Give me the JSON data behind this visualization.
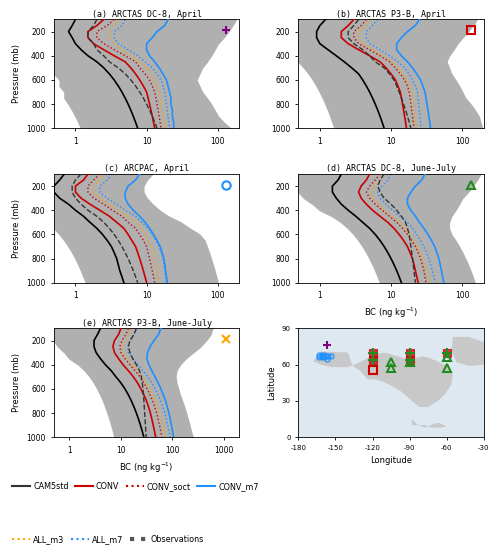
{
  "panels": [
    {
      "label": "(a) ARCTAS DC-8, April",
      "marker": "+",
      "marker_color": "#800080",
      "xlim": [
        0.5,
        200
      ],
      "xticks": [
        1,
        10,
        100
      ]
    },
    {
      "label": "(b) ARCTAS P3-B, April",
      "marker": "s",
      "marker_color": "#CC0000",
      "xlim": [
        0.5,
        200
      ],
      "xticks": [
        1,
        10,
        100
      ]
    },
    {
      "label": "(c) ARCPAC, April",
      "marker": "o",
      "marker_color": "#1E90FF",
      "xlim": [
        0.5,
        200
      ],
      "xticks": [
        1,
        10,
        100
      ]
    },
    {
      "label": "(d) ARCTAS DC-8, June-July",
      "marker": "^",
      "marker_color": "#228B22",
      "xlim": [
        0.5,
        200
      ],
      "xticks": [
        1,
        10,
        100
      ]
    },
    {
      "label": "(e) ARCTAS P3-B, June-July",
      "marker": "x",
      "marker_color": "#FFA500",
      "xlim": [
        0.5,
        2000
      ],
      "xticks": [
        1,
        10,
        100,
        1000
      ]
    }
  ],
  "pressure_levels": [
    100,
    150,
    200,
    250,
    300,
    350,
    400,
    450,
    500,
    550,
    600,
    650,
    700,
    750,
    800,
    850,
    900,
    950,
    1000
  ],
  "panel_a": {
    "obs_x_low": [
      0.3,
      0.3,
      0.3,
      0.3,
      0.3,
      0.3,
      0.3,
      0.4,
      0.5,
      0.5,
      0.6,
      0.6,
      0.7,
      0.7,
      0.8,
      0.9,
      1.0,
      1.1,
      1.2
    ],
    "obs_x_high": [
      180,
      160,
      140,
      120,
      100,
      90,
      80,
      70,
      60,
      55,
      50,
      55,
      60,
      70,
      80,
      90,
      100,
      120,
      150
    ],
    "obs_x_med": [
      2.0,
      1.8,
      1.5,
      1.5,
      1.8,
      2.0,
      2.5,
      3.0,
      4.0,
      5.0,
      6.0,
      7.0,
      8.0,
      9.0,
      10.0,
      11.0,
      12.0,
      13.0,
      14.0
    ],
    "CAM5std": [
      1.0,
      0.9,
      0.8,
      0.9,
      1.0,
      1.2,
      1.5,
      2.0,
      2.5,
      3.0,
      3.5,
      4.0,
      4.5,
      5.0,
      5.5,
      6.0,
      6.5,
      7.0,
      7.5
    ],
    "CONV": [
      2.5,
      2.0,
      1.5,
      1.5,
      1.8,
      2.5,
      3.5,
      5.0,
      6.0,
      7.0,
      8.0,
      9.0,
      10.0,
      10.5,
      11.0,
      11.5,
      12.0,
      12.5,
      13.0
    ],
    "CONV_soct": [
      3.5,
      2.8,
      2.0,
      2.0,
      2.5,
      3.5,
      5.0,
      7.0,
      8.0,
      9.5,
      11.0,
      12.0,
      13.0,
      13.5,
      14.0,
      14.5,
      15.0,
      15.5,
      16.0
    ],
    "CONV_m7": [
      20,
      18,
      14,
      12,
      10,
      10,
      11,
      13,
      15,
      17,
      19,
      20,
      21,
      22,
      22,
      23,
      23,
      24,
      24
    ],
    "ALL_m3": [
      4.0,
      3.5,
      3.0,
      3.0,
      3.5,
      4.5,
      6.0,
      8.0,
      10.0,
      11.5,
      13.0,
      14.0,
      15.0,
      15.5,
      16.0,
      16.5,
      17.0,
      17.5,
      18.0
    ],
    "ALL_m7": [
      5.0,
      4.5,
      3.5,
      3.5,
      4.0,
      5.5,
      7.5,
      9.5,
      12.0,
      14.0,
      16.0,
      17.0,
      18.0,
      18.5,
      19.0,
      19.5,
      20.0,
      20.5,
      21.0
    ]
  },
  "panel_b": {
    "obs_x_low": [
      0.3,
      0.3,
      0.3,
      0.3,
      0.3,
      0.4,
      0.5,
      0.5,
      0.6,
      0.7,
      0.8,
      0.9,
      1.0,
      1.1,
      1.2,
      1.3,
      1.4,
      1.5,
      1.6
    ],
    "obs_x_high": [
      160,
      140,
      120,
      100,
      85,
      75,
      65,
      60,
      65,
      70,
      80,
      90,
      100,
      110,
      130,
      150,
      170,
      180,
      190
    ],
    "obs_x_med": [
      3.5,
      3.0,
      2.5,
      2.5,
      3.0,
      4.0,
      5.0,
      6.0,
      8.0,
      9.5,
      11.0,
      12.0,
      13.0,
      14.0,
      15.0,
      16.0,
      17.0,
      18.0,
      19.0
    ],
    "CAM5std": [
      1.2,
      1.0,
      0.9,
      0.9,
      1.0,
      1.3,
      1.7,
      2.2,
      2.8,
      3.5,
      4.0,
      4.5,
      5.0,
      5.5,
      6.0,
      6.5,
      7.0,
      7.5,
      8.0
    ],
    "CONV": [
      3.0,
      2.5,
      2.0,
      2.0,
      2.5,
      3.5,
      5.0,
      7.0,
      8.5,
      10.0,
      11.5,
      12.5,
      13.5,
      14.0,
      14.5,
      15.0,
      15.5,
      16.0,
      16.5
    ],
    "CONV_soct": [
      4.5,
      3.8,
      3.0,
      3.0,
      3.5,
      5.0,
      7.0,
      9.5,
      11.5,
      13.5,
      15.5,
      17.0,
      18.0,
      18.5,
      19.0,
      19.5,
      20.0,
      20.5,
      21.0
    ],
    "CONV_m7": [
      25,
      22,
      17,
      14,
      12,
      12,
      14,
      17,
      20,
      23,
      26,
      28,
      30,
      31,
      32,
      33,
      34,
      35,
      36
    ],
    "ALL_m3": [
      5.0,
      4.5,
      3.5,
      3.5,
      4.0,
      5.5,
      7.5,
      10.0,
      12.5,
      14.5,
      16.5,
      18.0,
      19.5,
      20.0,
      20.5,
      21.0,
      21.5,
      22.0,
      22.5
    ],
    "ALL_m7": [
      6.5,
      5.5,
      4.5,
      4.5,
      5.0,
      7.0,
      9.5,
      12.5,
      15.5,
      18.0,
      20.0,
      22.0,
      23.5,
      24.0,
      24.5,
      25.0,
      25.5,
      26.0,
      26.5
    ]
  },
  "panel_c": {
    "obs_x_low": [
      0.3,
      0.3,
      0.3,
      0.3,
      0.3,
      0.3,
      0.4,
      0.4,
      0.5,
      0.5,
      0.6,
      0.7,
      0.8,
      0.9,
      1.0,
      1.1,
      1.2,
      1.3,
      1.4
    ],
    "obs_x_high": [
      12,
      10,
      9,
      9,
      10,
      12,
      15,
      20,
      30,
      40,
      55,
      65,
      70,
      75,
      80,
      85,
      90,
      95,
      100
    ],
    "obs_x_med": [
      1.2,
      1.0,
      0.9,
      0.9,
      1.0,
      1.2,
      1.5,
      2.0,
      2.5,
      3.0,
      3.5,
      4.0,
      4.5,
      5.0,
      5.5,
      6.0,
      6.5,
      7.0,
      7.5
    ],
    "CAM5std": [
      0.7,
      0.6,
      0.5,
      0.5,
      0.6,
      0.8,
      1.0,
      1.3,
      1.6,
      2.0,
      2.4,
      2.8,
      3.2,
      3.5,
      3.8,
      4.0,
      4.2,
      4.5,
      4.8
    ],
    "CONV": [
      1.5,
      1.3,
      1.0,
      1.0,
      1.2,
      1.6,
      2.2,
      3.0,
      3.8,
      4.8,
      5.5,
      6.2,
      7.0,
      7.5,
      8.0,
      8.5,
      9.0,
      9.5,
      10.0
    ],
    "CONV_soct": [
      2.2,
      1.8,
      1.5,
      1.5,
      1.8,
      2.5,
      3.3,
      4.5,
      5.5,
      7.0,
      8.0,
      9.0,
      10.0,
      10.5,
      11.0,
      11.5,
      12.0,
      12.5,
      13.0
    ],
    "CONV_m7": [
      8.0,
      7.0,
      5.5,
      5.0,
      5.0,
      5.5,
      6.5,
      8.0,
      9.5,
      11.0,
      12.5,
      14.0,
      15.5,
      16.5,
      17.5,
      18.0,
      18.5,
      19.0,
      19.5
    ],
    "ALL_m3": [
      2.5,
      2.2,
      1.8,
      1.8,
      2.2,
      3.0,
      4.0,
      5.5,
      7.0,
      8.5,
      9.5,
      10.5,
      11.5,
      12.5,
      13.0,
      13.5,
      14.0,
      14.5,
      15.0
    ],
    "ALL_m7": [
      3.2,
      2.8,
      2.2,
      2.2,
      2.8,
      3.8,
      5.0,
      7.0,
      8.5,
      10.5,
      12.0,
      13.5,
      15.0,
      16.0,
      17.0,
      17.5,
      18.0,
      18.5,
      19.0
    ]
  },
  "panel_d": {
    "obs_x_low": [
      0.4,
      0.4,
      0.4,
      0.5,
      0.6,
      0.8,
      1.0,
      1.5,
      2.0,
      2.5,
      3.0,
      3.5,
      4.0,
      4.5,
      5.0,
      5.5,
      6.0,
      6.5,
      7.0
    ],
    "obs_x_high": [
      180,
      160,
      140,
      120,
      100,
      90,
      80,
      70,
      65,
      65,
      70,
      80,
      90,
      100,
      110,
      120,
      130,
      140,
      150
    ],
    "obs_x_med": [
      8.0,
      7.0,
      6.5,
      7.0,
      8.0,
      10.0,
      12.0,
      14.0,
      16.0,
      17.0,
      18.0,
      18.5,
      19.0,
      19.5,
      20.0,
      20.5,
      21.0,
      21.5,
      22.0
    ],
    "CAM5std": [
      2.0,
      1.8,
      1.5,
      1.5,
      1.7,
      2.0,
      2.5,
      3.2,
      4.0,
      5.0,
      6.0,
      7.0,
      8.0,
      9.0,
      10.0,
      11.0,
      12.0,
      13.0,
      14.0
    ],
    "CONV": [
      5.0,
      4.5,
      3.8,
      3.5,
      3.8,
      4.5,
      5.5,
      7.0,
      9.0,
      11.0,
      13.0,
      15.0,
      17.0,
      18.5,
      20.0,
      21.0,
      22.0,
      23.0,
      24.0
    ],
    "CONV_soct": [
      7.0,
      6.0,
      5.0,
      4.5,
      5.0,
      6.0,
      7.5,
      9.5,
      12.0,
      14.5,
      17.0,
      19.5,
      22.0,
      24.0,
      26.0,
      27.5,
      29.0,
      30.0,
      31.0
    ],
    "CONV_m7": [
      30,
      27,
      22,
      19,
      17,
      17,
      19,
      22,
      25,
      29,
      33,
      37,
      41,
      44,
      47,
      49,
      51,
      53,
      55
    ],
    "ALL_m3": [
      8.0,
      7.0,
      5.8,
      5.2,
      5.5,
      6.5,
      8.0,
      10.0,
      13.0,
      15.5,
      18.0,
      20.5,
      23.0,
      25.0,
      27.0,
      29.0,
      31.0,
      33.0,
      35.0
    ],
    "ALL_m7": [
      10.0,
      9.0,
      7.5,
      6.5,
      7.0,
      8.5,
      10.5,
      13.5,
      17.0,
      20.0,
      23.0,
      26.0,
      29.0,
      31.5,
      34.0,
      36.0,
      38.0,
      40.0,
      42.0
    ]
  },
  "panel_e": {
    "obs_x_low": [
      0.5,
      0.5,
      0.5,
      0.6,
      0.8,
      1.0,
      1.5,
      2.0,
      2.5,
      3.0,
      3.5,
      4.0,
      4.5,
      5.0,
      5.5,
      6.0,
      6.5,
      7.0,
      7.5
    ],
    "obs_x_high": [
      600,
      550,
      450,
      350,
      250,
      180,
      140,
      120,
      115,
      120,
      130,
      140,
      155,
      170,
      185,
      200,
      215,
      230,
      250
    ],
    "obs_x_med": [
      20.0,
      18.0,
      15.0,
      14.0,
      15.0,
      17.0,
      20.0,
      23.0,
      25.0,
      26.0,
      27.0,
      27.5,
      28.0,
      28.5,
      29.0,
      29.5,
      30.0,
      30.5,
      31.0
    ],
    "CAM5std": [
      4.0,
      3.5,
      3.0,
      3.0,
      3.3,
      4.0,
      5.0,
      6.5,
      8.0,
      10.0,
      12.0,
      14.0,
      16.0,
      18.0,
      20.0,
      22.0,
      24.0,
      26.0,
      28.0
    ],
    "CONV": [
      10.0,
      9.0,
      7.5,
      7.0,
      7.5,
      9.0,
      11.0,
      14.0,
      17.5,
      21.0,
      24.5,
      28.0,
      31.5,
      34.5,
      37.5,
      40.0,
      42.5,
      45.0,
      47.5
    ],
    "CONV_soct": [
      14.0,
      12.5,
      10.5,
      9.5,
      10.0,
      12.0,
      15.0,
      19.0,
      23.5,
      28.0,
      32.5,
      37.0,
      41.5,
      45.5,
      49.5,
      53.0,
      56.5,
      59.5,
      62.5
    ],
    "CONV_m7": [
      60,
      54,
      44,
      37,
      33,
      32,
      35,
      40,
      46,
      53,
      60,
      67,
      74,
      80,
      86,
      91,
      96,
      101,
      106
    ],
    "ALL_m3": [
      16.0,
      14.5,
      12.0,
      11.0,
      11.5,
      13.5,
      17.0,
      21.5,
      26.5,
      31.5,
      36.5,
      41.5,
      46.5,
      51.0,
      55.5,
      59.5,
      63.5,
      67.5,
      71.5
    ],
    "ALL_m7": [
      20.0,
      18.0,
      15.0,
      13.5,
      14.0,
      17.0,
      21.5,
      27.0,
      33.5,
      40.0,
      46.5,
      53.0,
      59.5,
      65.5,
      71.5,
      76.5,
      81.5,
      86.5,
      91.5
    ]
  },
  "map_points": {
    "purple_plus": {
      "lon": -157,
      "lat": 76
    },
    "blue_circles": [
      {
        "lon": -163,
        "lat": 68
      },
      {
        "lon": -161,
        "lat": 68
      },
      {
        "lon": -159,
        "lat": 68
      },
      {
        "lon": -158,
        "lat": 67
      },
      {
        "lon": -156,
        "lat": 67
      },
      {
        "lon": -154,
        "lat": 67
      },
      {
        "lon": -163,
        "lat": 66
      },
      {
        "lon": -161,
        "lat": 66
      },
      {
        "lon": -159,
        "lat": 66
      },
      {
        "lon": -157,
        "lat": 65
      }
    ],
    "red_sq_plus": [
      {
        "lon": -120,
        "lat": 70
      },
      {
        "lon": -90,
        "lat": 70
      },
      {
        "lon": -60,
        "lat": 70
      },
      {
        "lon": -120,
        "lat": 64
      },
      {
        "lon": -90,
        "lat": 64
      }
    ],
    "red_sq_open": {
      "lon": -120,
      "lat": 56
    },
    "green_triangles": [
      {
        "lon": -105,
        "lat": 62
      },
      {
        "lon": -90,
        "lat": 62
      },
      {
        "lon": -60,
        "lat": 66
      },
      {
        "lon": -60,
        "lat": 57
      },
      {
        "lon": -105,
        "lat": 57
      }
    ]
  }
}
